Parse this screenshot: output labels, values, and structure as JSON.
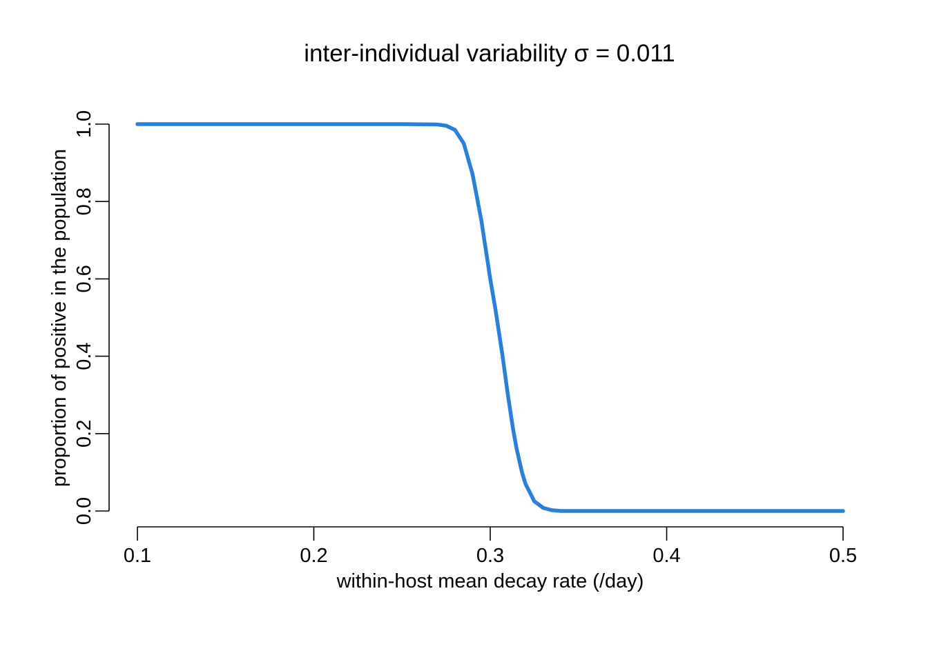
{
  "chart_data": {
    "type": "line",
    "title": "inter-individual variability σ = 0.011",
    "xlabel": "within-host mean decay rate (/day)",
    "ylabel": "proportion of positive in the population",
    "xlim": [
      0.1,
      0.5
    ],
    "ylim": [
      0.0,
      1.0
    ],
    "x_ticks": [
      "0.1",
      "0.2",
      "0.3",
      "0.4",
      "0.5"
    ],
    "y_ticks": [
      "0.0",
      "0.2",
      "0.4",
      "0.6",
      "0.8",
      "1.0"
    ],
    "grid": false,
    "legend": "none",
    "series": [
      {
        "color": "#2a7fd9",
        "x": [
          0.1,
          0.15,
          0.2,
          0.25,
          0.27,
          0.275,
          0.28,
          0.285,
          0.29,
          0.295,
          0.3,
          0.303,
          0.305,
          0.307,
          0.31,
          0.313,
          0.315,
          0.318,
          0.32,
          0.325,
          0.33,
          0.335,
          0.34,
          0.35,
          0.4,
          0.45,
          0.5
        ],
        "y": [
          1.0,
          1.0,
          1.0,
          1.0,
          0.999,
          0.996,
          0.985,
          0.95,
          0.87,
          0.75,
          0.6,
          0.52,
          0.46,
          0.4,
          0.3,
          0.21,
          0.16,
          0.1,
          0.07,
          0.025,
          0.008,
          0.002,
          0.0,
          0.0,
          0.0,
          0.0,
          0.0
        ]
      }
    ]
  }
}
